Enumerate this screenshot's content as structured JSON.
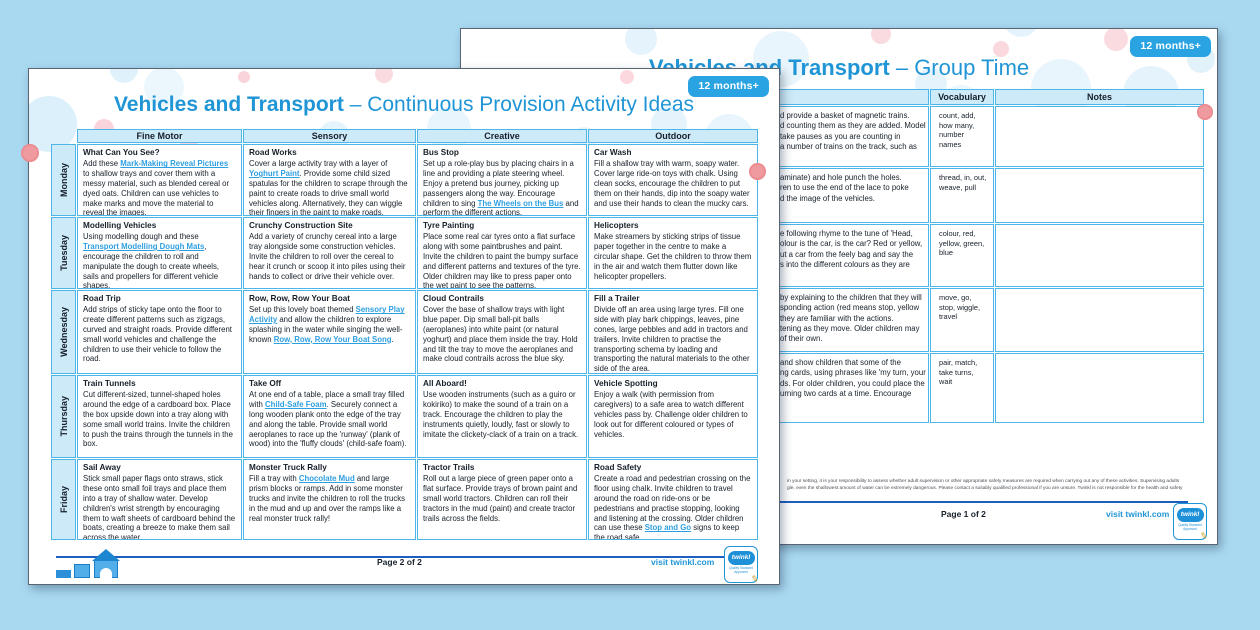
{
  "colors": {
    "background": "#a9d9f1",
    "brand_blue": "#2095d6",
    "badge_blue": "#29a3e2",
    "table_border": "#4db6e8",
    "header_bg": "#cdeaf8",
    "link_blue": "#2e9fe0",
    "footer_line": "#1d5fc0",
    "decor_dot": "#ef9a9e",
    "bubble_blue": "#bfe3f7",
    "bubble_pink": "#f5b8c1"
  },
  "logo": {
    "name": "twinkl",
    "tagline": "Quality Standard Approved"
  },
  "front_page": {
    "badge": "12 months+",
    "title_bold": "Vehicles and Transport",
    "title_rest": " – Continuous Provision Activity Ideas",
    "columns": [
      "Fine Motor",
      "Sensory",
      "Creative",
      "Outdoor"
    ],
    "rows": [
      {
        "day": "Monday",
        "cells": [
          {
            "title": "What Can You See?",
            "body": [
              {
                "t": "Add these "
              },
              {
                "t": "Mark-Making Reveal Pictures",
                "link": true
              },
              {
                "t": " to shallow trays and cover them with a messy material, such as blended cereal or dyed oats. Children can use vehicles to make marks and move the material to reveal the images."
              }
            ]
          },
          {
            "title": "Road Works",
            "body": [
              {
                "t": "Cover a large activity tray with a layer of "
              },
              {
                "t": "Yoghurt Paint",
                "link": true
              },
              {
                "t": ". Provide some child sized spatulas for the children to scrape through the paint to create roads to drive small world vehicles along. Alternatively, they can wiggle their fingers in the paint to make roads."
              }
            ]
          },
          {
            "title": "Bus Stop",
            "body": [
              {
                "t": "Set up a role-play bus by placing chairs in a line and providing a plate steering wheel. Enjoy a pretend bus journey, picking up passengers along the way. Encourage children to sing "
              },
              {
                "t": "The Wheels on the Bus",
                "link": true
              },
              {
                "t": " and perform the different actions."
              }
            ]
          },
          {
            "title": "Car Wash",
            "body": [
              {
                "t": "Fill a shallow tray with warm, soapy water. Cover large ride-on toys with chalk. Using clean socks, encourage the children to put them on their hands, dip into the soapy water and use their hands to clean the mucky cars."
              }
            ]
          }
        ]
      },
      {
        "day": "Tuesday",
        "cells": [
          {
            "title": "Modelling Vehicles",
            "body": [
              {
                "t": "Using modelling dough and these "
              },
              {
                "t": "Transport Modelling Dough Mats",
                "link": true
              },
              {
                "t": ", encourage the children to roll and manipulate the dough to create wheels, sails and propellers for different vehicle shapes."
              }
            ]
          },
          {
            "title": "Crunchy Construction Site",
            "body": [
              {
                "t": "Add a variety of crunchy cereal into a large tray alongside some construction vehicles. Invite the children to roll over the cereal to hear it crunch or scoop it into piles using their hands to collect or drive their vehicle over."
              }
            ]
          },
          {
            "title": "Tyre Painting",
            "body": [
              {
                "t": "Place some real car tyres onto a flat surface along with some paintbrushes and paint. Invite the children to paint the bumpy surface and different patterns and textures of the tyre. Older children may like to press paper onto the wet paint to see the patterns."
              }
            ]
          },
          {
            "title": "Helicopters",
            "body": [
              {
                "t": "Make streamers by sticking strips of tissue paper together in the centre to make a circular shape. Get the children to throw them in the air and watch them flutter down like helicopter propellers."
              }
            ]
          }
        ]
      },
      {
        "day": "Wednesday",
        "cells": [
          {
            "title": "Road Trip",
            "body": [
              {
                "t": "Add strips of sticky tape onto the floor to create different patterns such as zigzags, curved and straight roads. Provide different small world vehicles and challenge the children to use their vehicle to follow the road."
              }
            ]
          },
          {
            "title": "Row, Row, Row Your Boat",
            "body": [
              {
                "t": "Set up this lovely boat themed "
              },
              {
                "t": "Sensory Play Activity",
                "link": true
              },
              {
                "t": " and allow the children to explore splashing in the water while singing the well-known "
              },
              {
                "t": "Row, Row, Row Your Boat Song",
                "link": true
              },
              {
                "t": "."
              }
            ]
          },
          {
            "title": "Cloud Contrails",
            "body": [
              {
                "t": "Cover the base of shallow trays with light blue paper. Dip small ball-pit balls (aeroplanes) into white paint (or natural yoghurt) and place them inside the tray. Hold and tilt the tray to move the aeroplanes and make cloud contrails across the blue sky."
              }
            ]
          },
          {
            "title": "Fill a Trailer",
            "body": [
              {
                "t": "Divide off an area using large tyres. Fill one side with play bark chippings, leaves, pine cones, large pebbles and add in tractors and trailers. Invite children to practise the transporting schema by loading and transporting the natural materials to the other side of the area."
              }
            ]
          }
        ]
      },
      {
        "day": "Thursday",
        "cells": [
          {
            "title": "Train Tunnels",
            "body": [
              {
                "t": "Cut different-sized, tunnel-shaped holes around the edge of a cardboard box. Place the box upside down into a tray along with some small world trains. Invite the children to push the trains through the tunnels in the box."
              }
            ]
          },
          {
            "title": "Take Off",
            "body": [
              {
                "t": "At one end of a table, place a small tray filled with "
              },
              {
                "t": "Child-Safe Foam",
                "link": true
              },
              {
                "t": ". Securely connect a long wooden plank onto the edge of the tray and along the table. Provide small world aeroplanes to race up the 'runway' (plank of wood) into the 'fluffy clouds' (child-safe foam)."
              }
            ]
          },
          {
            "title": "All Aboard!",
            "body": [
              {
                "t": "Use wooden instruments (such as a guiro or kokiriko) to make the sound of a train on a track. Encourage the children to play the instruments quietly, loudly, fast or slowly to imitate the clickety-clack of a train on a track."
              }
            ]
          },
          {
            "title": "Vehicle Spotting",
            "body": [
              {
                "t": "Enjoy a walk (with permission from caregivers) to a safe area to watch different vehicles pass by. Challenge older children to look out for different coloured or types of vehicles."
              }
            ]
          }
        ]
      },
      {
        "day": "Friday",
        "cells": [
          {
            "title": "Sail Away",
            "body": [
              {
                "t": "Stick small paper flags onto straws, stick these onto small foil trays and place them into a tray of shallow water. Develop children's wrist strength by encouraging them to waft sheets of cardboard behind the boats, creating a breeze to make them sail across the water."
              }
            ]
          },
          {
            "title": "Monster Truck Rally",
            "body": [
              {
                "t": "Fill a tray with "
              },
              {
                "t": "Chocolate Mud",
                "link": true
              },
              {
                "t": " and large prism blocks or ramps. Add in some monster trucks and invite the children to roll the trucks in the mud and up and over the ramps like a real monster truck rally!"
              }
            ]
          },
          {
            "title": "Tractor Trails",
            "body": [
              {
                "t": "Roll out a large piece of green paper onto a flat surface. Provide trays of brown paint and small world tractors. Children can roll their tractors in the mud (paint) and create tractor trails across the fields."
              }
            ]
          },
          {
            "title": "Road Safety",
            "body": [
              {
                "t": "Create a road and pedestrian crossing on the floor using chalk. Invite children to travel around the road on ride-ons or be pedestrians and practise stopping, looking and listening at the crossing. Older children can use these "
              },
              {
                "t": "Stop and Go",
                "link": true
              },
              {
                "t": " signs to keep the road safe."
              }
            ]
          }
        ]
      }
    ],
    "footer": {
      "page_label": "Page 2 of 2",
      "visit": "visit twinkl.com"
    }
  },
  "back_page": {
    "badge": "12 months+",
    "title_bold": "Vehicles and Transport",
    "title_rest": " – Group Time",
    "columns": [
      "",
      "Vocabulary",
      "Notes"
    ],
    "rows": [
      {
        "activity_fragment": "d provide a basket of magnetic trains.\nd counting them as they are added. Model\ntake pauses as you are counting in\na number of trains on the track, such as",
        "vocabulary": "count, add,\nhow many,\nnumber\nnames",
        "notes": ""
      },
      {
        "activity_fragment": "aminate) and hole punch the holes.\nren to use the end of the lace to poke\nd the image of the vehicles.",
        "vocabulary": "thread, in, out,\nweave, pull",
        "notes": ""
      },
      {
        "activity_fragment": "e following rhyme to the tune of 'Head,\nolour is the car, is the car? Red or yellow,\nut a car from the feely bag and say the\ns into the different colours as they are",
        "vocabulary": "colour, red,\nyellow, green,\nblue",
        "notes": ""
      },
      {
        "activity_fragment": "by explaining to the children that they will\nsponding action (red means stop, yellow\nthey are familiar with the actions.\ntening as they move. Older children may\nof their own.",
        "vocabulary": "move, go,\nstop, wiggle,\ntravel",
        "notes": ""
      },
      {
        "activity_fragment": "and show children that some of the\nng cards, using phrases like 'my turn, your\nds. For older children, you could place the\nurning two cards at a time. Encourage",
        "vocabulary": "pair, match,\ntake turns,\nwait",
        "notes": ""
      }
    ],
    "disclaimer_line1": "in your setting, it is your responsibility to assess whether adult supervision or other appropriate safety measures are required when carrying out any of these activities. Supervising adults",
    "disclaimer_line2": "gle, even the shallowest amount of water can be extremely dangerous. Please contact a suitably qualified professional if you are unsure. Twinkl is not responsible for the health and safety",
    "footer": {
      "page_label": "Page 1 of 2",
      "visit": "visit twinkl.com"
    }
  }
}
